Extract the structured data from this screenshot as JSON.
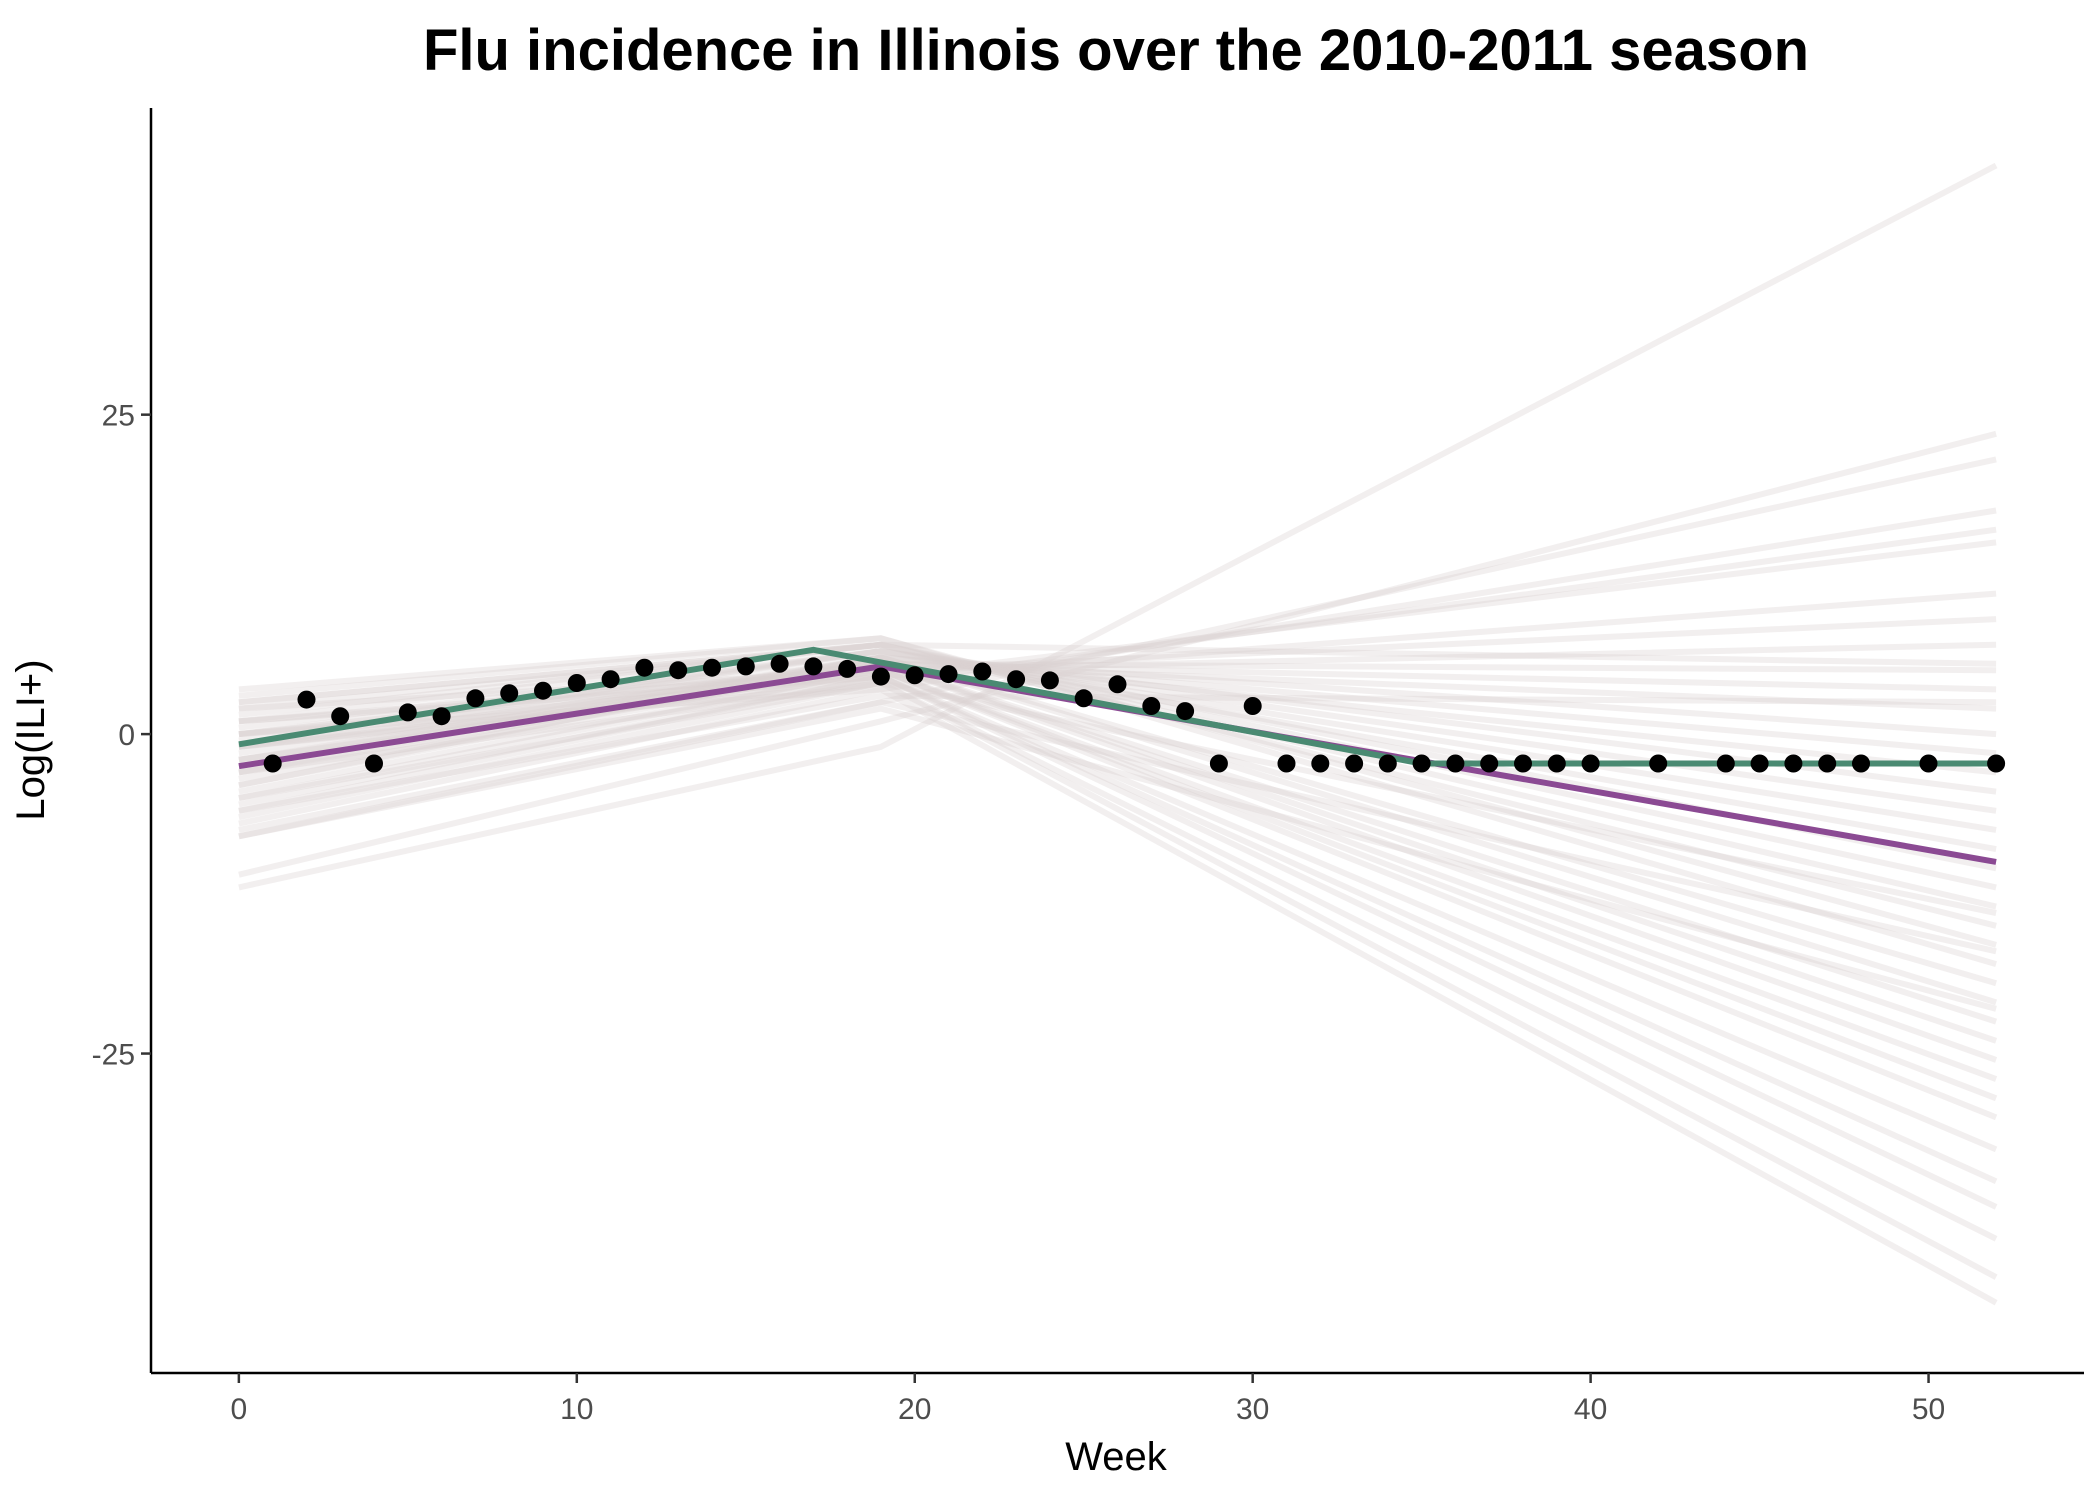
{
  "chart_data": {
    "type": "line",
    "title": "Flu incidence in Illinois over the 2010-2011 season",
    "xlabel": "Week",
    "ylabel": "Log(ILI+)",
    "xlim": [
      -2.6,
      54.6
    ],
    "ylim": [
      -50,
      49
    ],
    "x_ticks": [
      0,
      10,
      20,
      30,
      40,
      50
    ],
    "x_tick_labels": [
      "0",
      "10",
      "20",
      "30",
      "40",
      "50"
    ],
    "y_ticks": [
      -25,
      0,
      25
    ],
    "y_tick_labels": [
      "-25",
      "0",
      "25"
    ],
    "grid": false,
    "legend": "none",
    "colors": {
      "observed": "#000000",
      "fit_green": "#4a8a72",
      "fit_purple": "#8b4a93",
      "samples": "#d9d1d1"
    },
    "observed": {
      "x": [
        1,
        2,
        3,
        4,
        5,
        6,
        7,
        8,
        9,
        10,
        11,
        12,
        13,
        14,
        15,
        16,
        17,
        18,
        19,
        20,
        21,
        22,
        23,
        24,
        25,
        26,
        27,
        28,
        29,
        30,
        31,
        32,
        33,
        34,
        35,
        36,
        37,
        38,
        39,
        40,
        42,
        44,
        45,
        46,
        47,
        48,
        50,
        52
      ],
      "y": [
        -2.3,
        2.7,
        1.4,
        -2.3,
        1.7,
        1.4,
        2.8,
        3.2,
        3.4,
        4.0,
        4.3,
        5.2,
        5.0,
        5.2,
        5.3,
        5.5,
        5.3,
        5.1,
        4.5,
        4.6,
        4.7,
        4.9,
        4.3,
        4.2,
        2.8,
        3.9,
        2.2,
        1.8,
        -2.3,
        2.2,
        -2.3,
        -2.3,
        -2.3,
        -2.3,
        -2.3,
        -2.3,
        -2.3,
        -2.3,
        -2.3,
        -2.3,
        -2.3,
        -2.3,
        -2.3,
        -2.3,
        -2.3,
        -2.3,
        -2.3,
        -2.3
      ]
    },
    "fit_green": {
      "x": [
        0,
        17,
        35,
        52
      ],
      "y": [
        -0.8,
        6.6,
        -2.3,
        -2.3
      ]
    },
    "fit_purple": {
      "x": [
        0,
        19,
        52
      ],
      "y": [
        -2.5,
        5.3,
        -10.0
      ]
    },
    "samples": {
      "x": [
        0,
        19,
        52
      ],
      "y": [
        [
          -12.0,
          -1.0,
          44.5
        ],
        [
          -11.0,
          1.0,
          23.5
        ],
        [
          -8.0,
          2.5,
          21.5
        ],
        [
          -7.0,
          3.5,
          17.5
        ],
        [
          -6.5,
          4.0,
          16.0
        ],
        [
          -6.0,
          4.5,
          15.0
        ],
        [
          -5.5,
          4.5,
          11.0
        ],
        [
          -5.0,
          5.0,
          9.0
        ],
        [
          -4.5,
          5.0,
          7.0
        ],
        [
          -4.0,
          5.5,
          5.0
        ],
        [
          -3.5,
          5.5,
          3.5
        ],
        [
          -3.0,
          5.5,
          2.0
        ],
        [
          -2.5,
          6.0,
          0.0
        ],
        [
          -2.0,
          6.0,
          -1.5
        ],
        [
          -1.5,
          6.0,
          -3.0
        ],
        [
          -1.0,
          6.5,
          -4.5
        ],
        [
          -0.5,
          6.5,
          -6.0
        ],
        [
          0.0,
          6.5,
          -7.5
        ],
        [
          0.5,
          6.5,
          -9.0
        ],
        [
          1.0,
          7.0,
          -10.5
        ],
        [
          1.5,
          7.0,
          -12.0
        ],
        [
          2.0,
          7.0,
          -13.5
        ],
        [
          2.5,
          7.0,
          -15.0
        ],
        [
          3.0,
          7.5,
          -16.5
        ],
        [
          3.5,
          7.5,
          -18.0
        ],
        [
          -4.0,
          6.0,
          -19.5
        ],
        [
          -3.0,
          6.0,
          -21.0
        ],
        [
          -2.0,
          5.5,
          -22.5
        ],
        [
          -1.0,
          5.5,
          -24.0
        ],
        [
          0.0,
          5.5,
          -25.5
        ],
        [
          1.0,
          5.0,
          -27.0
        ],
        [
          2.0,
          5.0,
          -28.5
        ],
        [
          -2.0,
          5.0,
          -30.0
        ],
        [
          -1.0,
          4.5,
          -32.5
        ],
        [
          0.0,
          4.5,
          -35.0
        ],
        [
          1.0,
          4.5,
          -37.0
        ],
        [
          -3.0,
          4.0,
          -39.5
        ],
        [
          -1.0,
          4.0,
          -42.5
        ],
        [
          0.0,
          3.5,
          -44.5
        ],
        [
          -6.0,
          3.0,
          2.5
        ],
        [
          -7.5,
          2.5,
          -17.0
        ],
        [
          -5.0,
          4.0,
          -14.0
        ],
        [
          2.5,
          7.0,
          5.5
        ],
        [
          -8.0,
          2.0,
          -21.5
        ]
      ]
    }
  }
}
